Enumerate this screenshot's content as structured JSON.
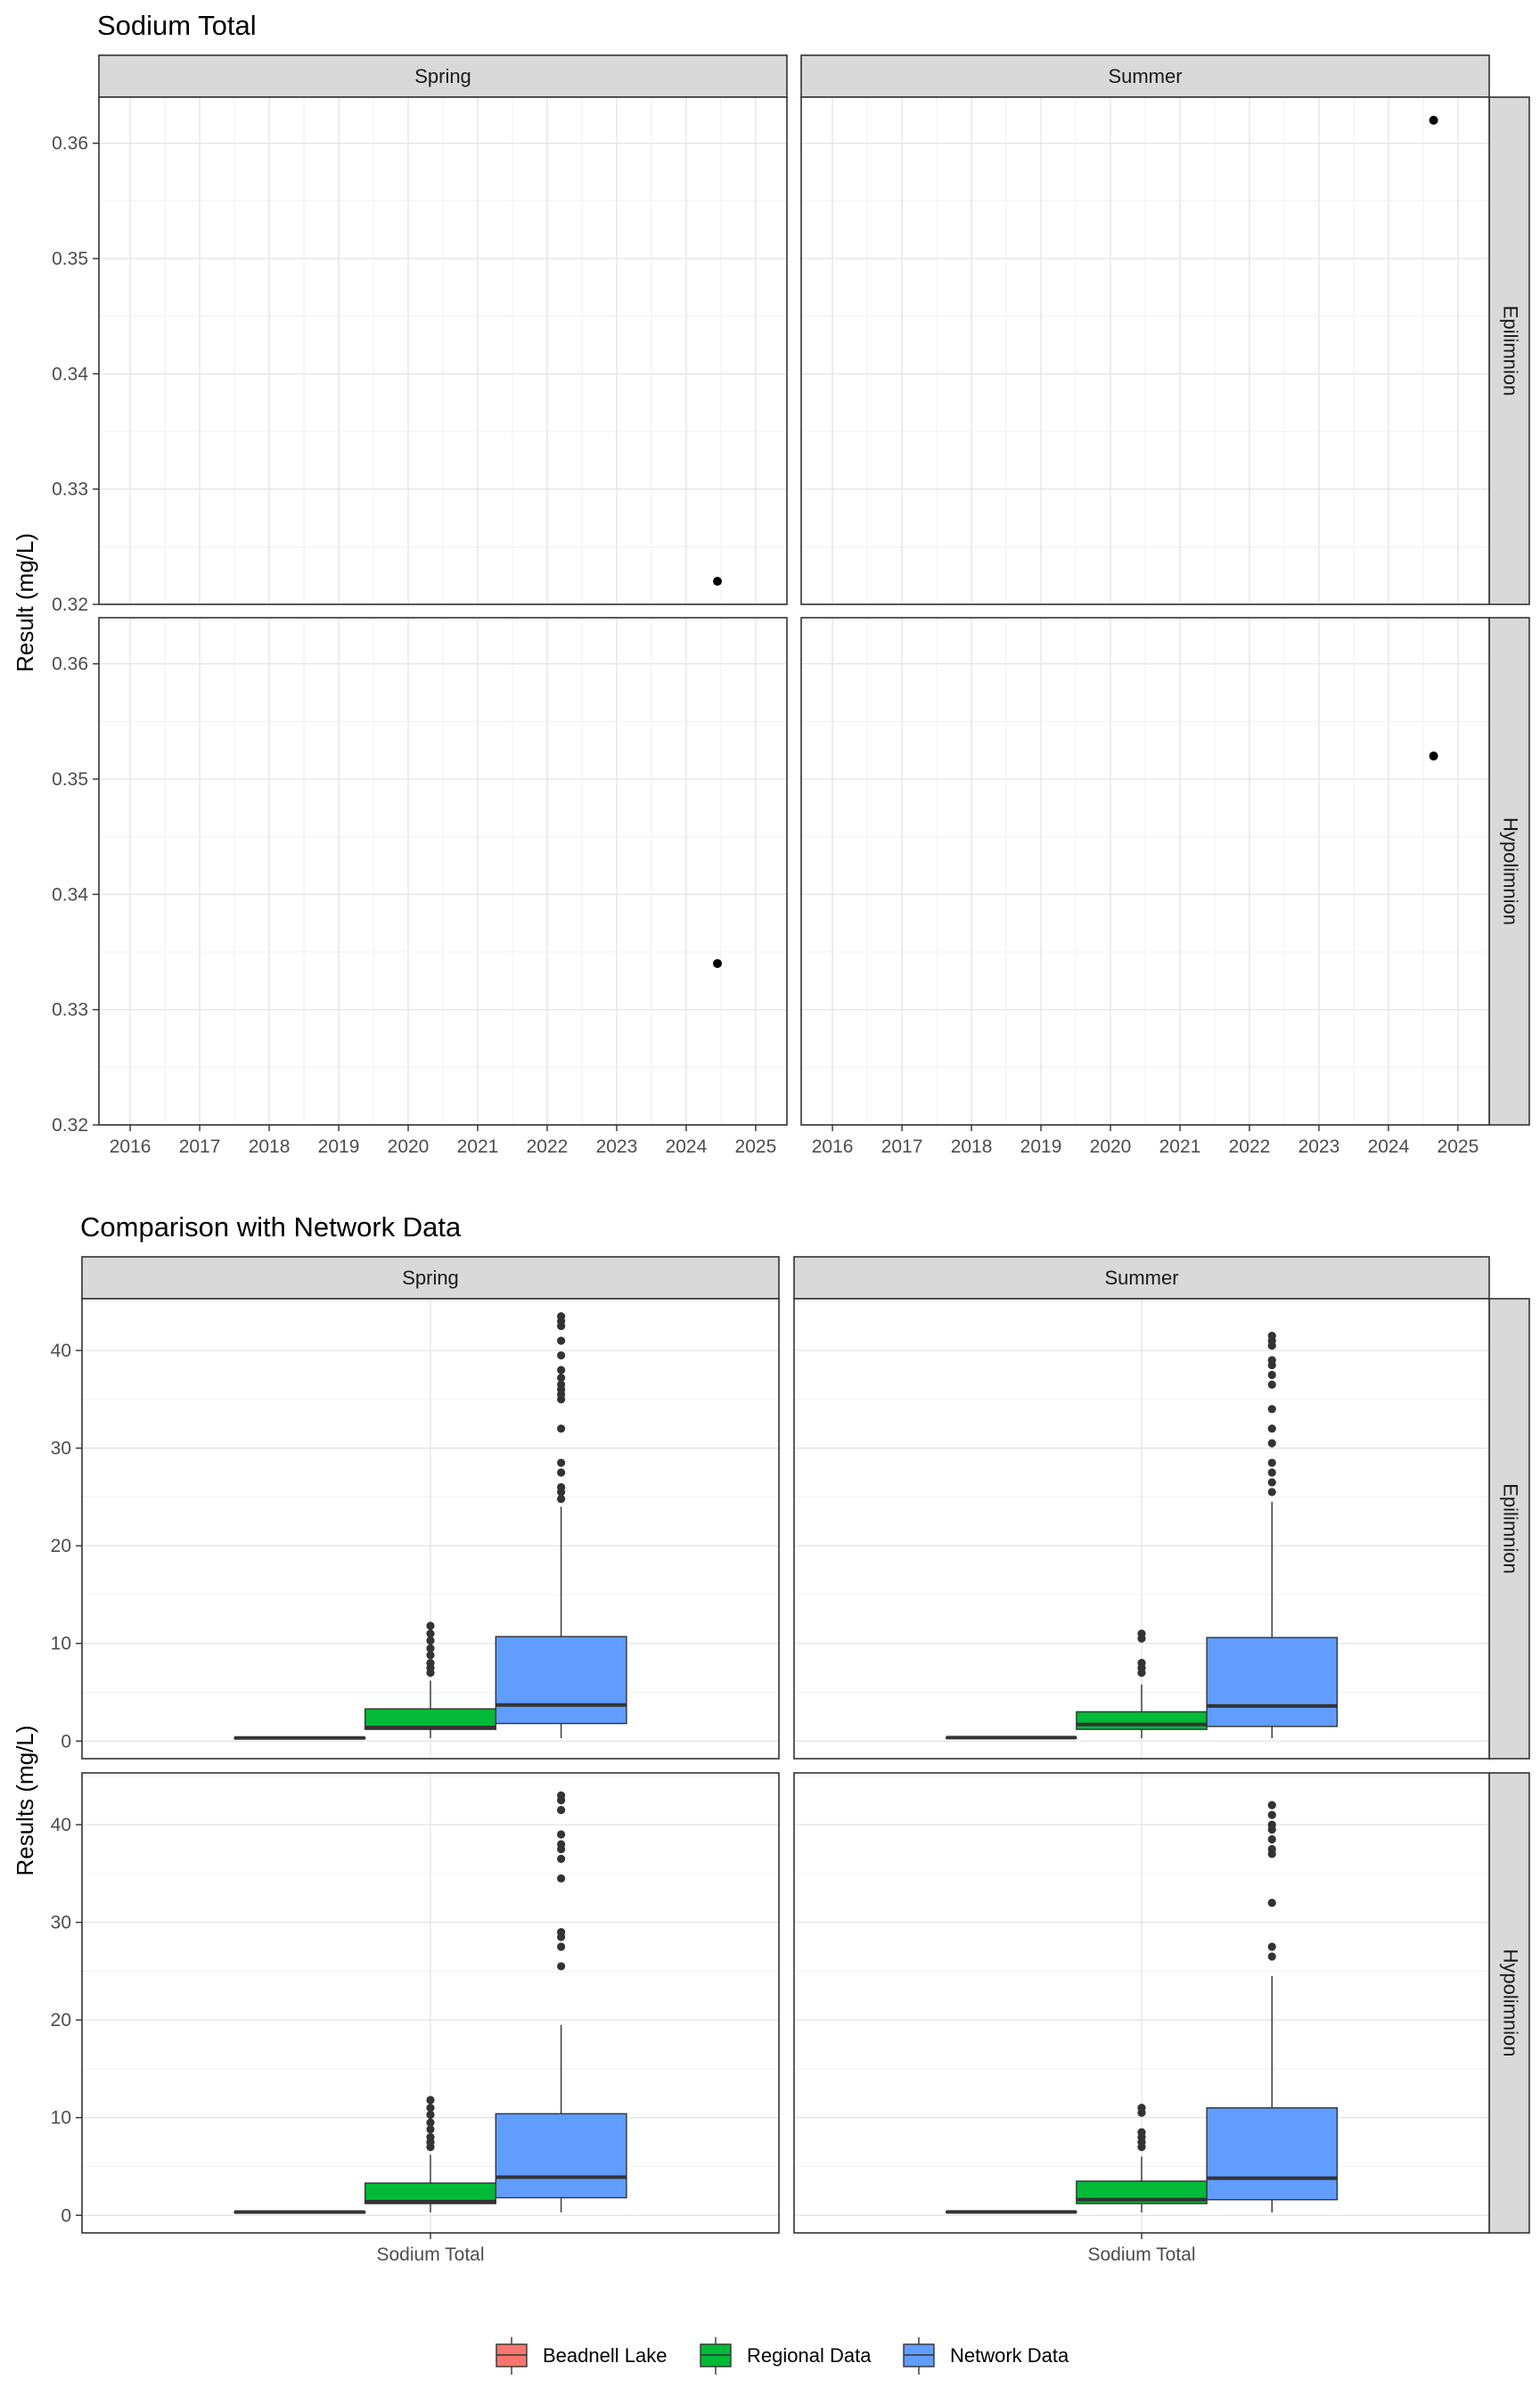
{
  "chart_data": [
    {
      "type": "scatter",
      "title": "Sodium Total",
      "ylabel": "Result (mg/L)",
      "xlabel": "",
      "x_ticks": [
        "2016",
        "2017",
        "2018",
        "2019",
        "2020",
        "2021",
        "2022",
        "2023",
        "2024",
        "2025"
      ],
      "xlim": [
        2015.55,
        2025.45
      ],
      "y_ticks": [
        "0.32",
        "0.33",
        "0.34",
        "0.35",
        "0.36"
      ],
      "ylim": [
        0.32,
        0.364
      ],
      "grid": true,
      "columns": [
        "Spring",
        "Summer"
      ],
      "rows": [
        "Epilimnion",
        "Hypolimnion"
      ],
      "facets": [
        {
          "column": "Spring",
          "row": "Epilimnion",
          "points": [
            {
              "x": 2024.45,
              "y": 0.322
            }
          ]
        },
        {
          "column": "Summer",
          "row": "Epilimnion",
          "points": [
            {
              "x": 2024.65,
              "y": 0.362
            }
          ]
        },
        {
          "column": "Spring",
          "row": "Hypolimnion",
          "points": [
            {
              "x": 2024.45,
              "y": 0.334
            }
          ]
        },
        {
          "column": "Summer",
          "row": "Hypolimnion",
          "points": [
            {
              "x": 2024.65,
              "y": 0.352
            }
          ]
        }
      ]
    },
    {
      "type": "box",
      "title": "Comparison with Network Data",
      "ylabel": "Results (mg/L)",
      "xlabel": "",
      "category": "Sodium Total",
      "y_ticks": [
        "0",
        "10",
        "20",
        "30",
        "40"
      ],
      "ylim": [
        -1.8,
        45.3
      ],
      "grid": true,
      "columns": [
        "Spring",
        "Summer"
      ],
      "rows": [
        "Epilimnion",
        "Hypolimnion"
      ],
      "legend": {
        "position": "bottom",
        "items": [
          {
            "label": "Beadnell Lake",
            "color": "#F8766D"
          },
          {
            "label": "Regional Data",
            "color": "#00BA38"
          },
          {
            "label": "Network Data",
            "color": "#619CFF"
          }
        ]
      },
      "facets": [
        {
          "column": "Spring",
          "row": "Epilimnion",
          "boxes": [
            {
              "series": "Beadnell Lake",
              "q1": 0.32,
              "median": 0.32,
              "q3": 0.32,
              "whisker_low": 0.32,
              "whisker_high": 0.32,
              "outliers": []
            },
            {
              "series": "Regional Data",
              "q1": 1.2,
              "median": 1.4,
              "q3": 3.3,
              "whisker_low": 0.3,
              "whisker_high": 6.2,
              "outliers": [
                7.0,
                7.5,
                8.0,
                8.8,
                9.5,
                10.3,
                11.0,
                11.8
              ]
            },
            {
              "series": "Network Data",
              "q1": 1.8,
              "median": 3.7,
              "q3": 10.7,
              "whisker_low": 0.3,
              "whisker_high": 24.0,
              "outliers": [
                24.8,
                25.5,
                26.0,
                27.5,
                28.5,
                32.0,
                35.0,
                35.5,
                36.0,
                36.5,
                37.2,
                38.0,
                39.5,
                41.0,
                42.5,
                43.0,
                43.5
              ]
            }
          ]
        },
        {
          "column": "Summer",
          "row": "Epilimnion",
          "boxes": [
            {
              "series": "Beadnell Lake",
              "q1": 0.36,
              "median": 0.36,
              "q3": 0.36,
              "whisker_low": 0.36,
              "whisker_high": 0.36,
              "outliers": []
            },
            {
              "series": "Regional Data",
              "q1": 1.2,
              "median": 1.7,
              "q3": 3.0,
              "whisker_low": 0.3,
              "whisker_high": 5.8,
              "outliers": [
                7.0,
                7.5,
                8.0,
                10.5,
                11.0
              ]
            },
            {
              "series": "Network Data",
              "q1": 1.5,
              "median": 3.6,
              "q3": 10.6,
              "whisker_low": 0.3,
              "whisker_high": 24.5,
              "outliers": [
                25.5,
                26.5,
                27.5,
                28.5,
                30.5,
                32.0,
                34.0,
                36.5,
                37.5,
                38.5,
                39.0,
                40.5,
                41.0,
                41.5
              ]
            }
          ]
        },
        {
          "column": "Spring",
          "row": "Hypolimnion",
          "boxes": [
            {
              "series": "Beadnell Lake",
              "q1": 0.33,
              "median": 0.33,
              "q3": 0.33,
              "whisker_low": 0.33,
              "whisker_high": 0.33,
              "outliers": []
            },
            {
              "series": "Regional Data",
              "q1": 1.2,
              "median": 1.4,
              "q3": 3.3,
              "whisker_low": 0.3,
              "whisker_high": 6.2,
              "outliers": [
                7.0,
                7.5,
                8.0,
                8.8,
                9.5,
                10.3,
                11.0,
                11.8
              ]
            },
            {
              "series": "Network Data",
              "q1": 1.8,
              "median": 3.9,
              "q3": 10.4,
              "whisker_low": 0.3,
              "whisker_high": 19.5,
              "outliers": [
                25.5,
                27.5,
                28.5,
                29.0,
                34.5,
                36.5,
                37.5,
                38.0,
                39.0,
                41.5,
                42.5,
                43.0
              ]
            }
          ]
        },
        {
          "column": "Summer",
          "row": "Hypolimnion",
          "boxes": [
            {
              "series": "Beadnell Lake",
              "q1": 0.35,
              "median": 0.35,
              "q3": 0.35,
              "whisker_low": 0.35,
              "whisker_high": 0.35,
              "outliers": []
            },
            {
              "series": "Regional Data",
              "q1": 1.2,
              "median": 1.6,
              "q3": 3.5,
              "whisker_low": 0.3,
              "whisker_high": 6.0,
              "outliers": [
                7.0,
                7.5,
                8.0,
                8.5,
                10.5,
                11.0
              ]
            },
            {
              "series": "Network Data",
              "q1": 1.6,
              "median": 3.8,
              "q3": 11.0,
              "whisker_low": 0.3,
              "whisker_high": 24.5,
              "outliers": [
                26.5,
                27.5,
                32.0,
                37.0,
                37.5,
                38.5,
                39.5,
                40.0,
                41.0,
                42.0
              ]
            }
          ]
        }
      ]
    }
  ]
}
